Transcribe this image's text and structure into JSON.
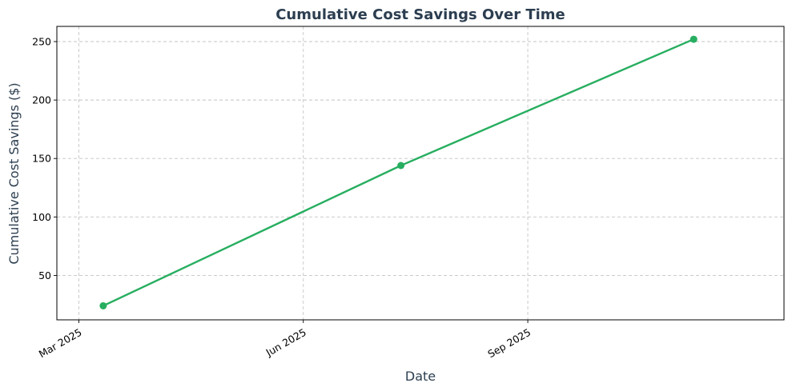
{
  "chart_data": {
    "type": "line",
    "title": "Cumulative Cost Savings Over Time",
    "xlabel": "Date",
    "ylabel": "Cumulative Cost Savings ($)",
    "x_tick_labels": [
      {
        "date": "2025-03-01",
        "label": "Mar 2025"
      },
      {
        "date": "2025-06-01",
        "label": "Jun 2025"
      },
      {
        "date": "2025-09-01",
        "label": "Sep 2025"
      }
    ],
    "y_ticks": [
      50,
      100,
      150,
      200,
      250
    ],
    "xlim": [
      "2025-02-20",
      "2025-12-15"
    ],
    "ylim": [
      12,
      263
    ],
    "grid": true,
    "series": [
      {
        "color": "#27ae60",
        "marker": "circle",
        "points": [
          {
            "x": "2025-03-11",
            "y": 24
          },
          {
            "x": "2025-07-11",
            "y": 144
          },
          {
            "x": "2025-11-08",
            "y": 252
          }
        ]
      }
    ]
  }
}
